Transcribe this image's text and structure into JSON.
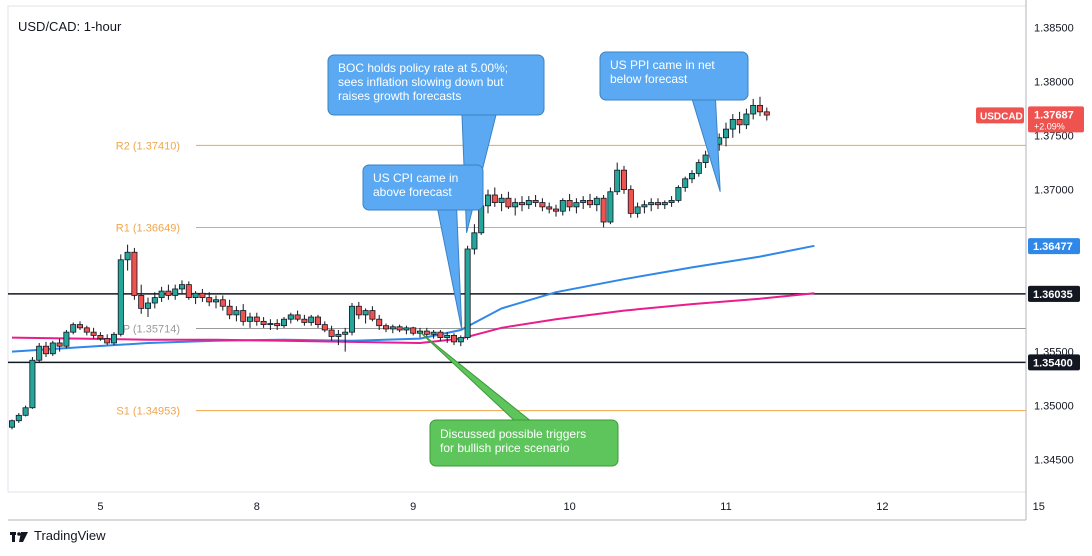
{
  "chart_data": {
    "type": "candlestick",
    "title": "USD/CAD: 1-hour",
    "symbol": "USDCAD",
    "last_price": "1.37687",
    "change": "+2.09%",
    "y_range": [
      1.342,
      1.387
    ],
    "y_ticks": [
      "1.38500",
      "1.38000",
      "1.37500",
      "1.37000",
      "1.36500",
      "1.36000",
      "1.35500",
      "1.35000",
      "1.34500"
    ],
    "x_ticks": [
      {
        "label": "5",
        "bar": 13
      },
      {
        "label": "8",
        "bar": 36
      },
      {
        "label": "9",
        "bar": 59
      },
      {
        "label": "10",
        "bar": 82
      },
      {
        "label": "11",
        "bar": 105
      },
      {
        "label": "12",
        "bar": 128
      },
      {
        "label": "15",
        "bar": 151
      }
    ],
    "pivot_levels": [
      {
        "name": "R2",
        "label": "R2 (1.37410)",
        "value": 1.3741,
        "color": "#f0a64c"
      },
      {
        "name": "R1",
        "label": "R1 (1.36649)",
        "value": 1.36649,
        "color": "#f0a64c"
      },
      {
        "name": "P",
        "label": "P (1.35714)",
        "value": 1.35714,
        "color": "#9a9a9a"
      },
      {
        "name": "S1",
        "label": "S1 (1.34953)",
        "value": 1.34953,
        "color": "#f0a64c"
      }
    ],
    "horizontal_lines": [
      {
        "value": 1.36035,
        "label": "1.36035",
        "color": "#131722",
        "label_bg": "#131722"
      },
      {
        "value": 1.354,
        "label": "1.35400",
        "color": "#131722",
        "label_bg": "#131722"
      }
    ],
    "price_labels": [
      {
        "value": 1.36477,
        "label": "1.36477",
        "bg": "#2f87e8"
      },
      {
        "value": 1.36035,
        "label": "1.36035",
        "bg": "#e91e63"
      }
    ],
    "candles": [
      [
        1.348,
        1.3487,
        1.3478,
        1.3486
      ],
      [
        1.3486,
        1.3493,
        1.3484,
        1.3491
      ],
      [
        1.3491,
        1.35,
        1.349,
        1.3498
      ],
      [
        1.3498,
        1.3545,
        1.3497,
        1.3542
      ],
      [
        1.3542,
        1.3558,
        1.354,
        1.3555
      ],
      [
        1.3555,
        1.3559,
        1.3545,
        1.3548
      ],
      [
        1.3548,
        1.356,
        1.3546,
        1.3558
      ],
      [
        1.3558,
        1.3562,
        1.355,
        1.3555
      ],
      [
        1.3555,
        1.357,
        1.3553,
        1.3568
      ],
      [
        1.3568,
        1.3577,
        1.3566,
        1.3575
      ],
      [
        1.3575,
        1.3578,
        1.357,
        1.3572
      ],
      [
        1.3572,
        1.3574,
        1.3565,
        1.3568
      ],
      [
        1.3568,
        1.3572,
        1.3562,
        1.3565
      ],
      [
        1.3565,
        1.3568,
        1.356,
        1.3562
      ],
      [
        1.3562,
        1.3566,
        1.3556,
        1.3558
      ],
      [
        1.3558,
        1.3568,
        1.3556,
        1.3566
      ],
      [
        1.3566,
        1.364,
        1.3564,
        1.3635
      ],
      [
        1.3635,
        1.3649,
        1.3625,
        1.3642
      ],
      [
        1.3642,
        1.3646,
        1.3598,
        1.3602
      ],
      [
        1.3602,
        1.3612,
        1.3585,
        1.359
      ],
      [
        1.359,
        1.36,
        1.3582,
        1.3595
      ],
      [
        1.3595,
        1.3605,
        1.359,
        1.36
      ],
      [
        1.36,
        1.361,
        1.3596,
        1.3606
      ],
      [
        1.3606,
        1.3612,
        1.3598,
        1.3602
      ],
      [
        1.3602,
        1.3612,
        1.3598,
        1.3608
      ],
      [
        1.3608,
        1.3616,
        1.3604,
        1.3612
      ],
      [
        1.3612,
        1.3615,
        1.3598,
        1.36
      ],
      [
        1.36,
        1.3606,
        1.3594,
        1.3604
      ],
      [
        1.3604,
        1.3608,
        1.3596,
        1.36
      ],
      [
        1.36,
        1.3605,
        1.3592,
        1.3596
      ],
      [
        1.3596,
        1.3602,
        1.359,
        1.3598
      ],
      [
        1.3598,
        1.3602,
        1.3588,
        1.3592
      ],
      [
        1.3592,
        1.3598,
        1.358,
        1.3584
      ],
      [
        1.3584,
        1.3592,
        1.3578,
        1.3588
      ],
      [
        1.3588,
        1.3594,
        1.3574,
        1.3578
      ],
      [
        1.3578,
        1.3586,
        1.3572,
        1.3582
      ],
      [
        1.3582,
        1.3586,
        1.3574,
        1.3578
      ],
      [
        1.3578,
        1.3582,
        1.3572,
        1.3575
      ],
      [
        1.3575,
        1.358,
        1.357,
        1.3576
      ],
      [
        1.3576,
        1.358,
        1.357,
        1.3574
      ],
      [
        1.3574,
        1.3582,
        1.3572,
        1.358
      ],
      [
        1.358,
        1.3586,
        1.3576,
        1.3584
      ],
      [
        1.3584,
        1.3588,
        1.3578,
        1.358
      ],
      [
        1.358,
        1.3584,
        1.3574,
        1.3577
      ],
      [
        1.3577,
        1.3584,
        1.3574,
        1.3582
      ],
      [
        1.3582,
        1.3584,
        1.3572,
        1.3575
      ],
      [
        1.3575,
        1.3578,
        1.3568,
        1.357
      ],
      [
        1.357,
        1.3574,
        1.356,
        1.3564
      ],
      [
        1.3564,
        1.357,
        1.3556,
        1.3566
      ],
      [
        1.3566,
        1.3572,
        1.355,
        1.3568
      ],
      [
        1.3568,
        1.3595,
        1.3565,
        1.3592
      ],
      [
        1.3592,
        1.3596,
        1.358,
        1.3584
      ],
      [
        1.3584,
        1.359,
        1.3576,
        1.3588
      ],
      [
        1.3588,
        1.3592,
        1.3578,
        1.358
      ],
      [
        1.358,
        1.3584,
        1.357,
        1.3574
      ],
      [
        1.3574,
        1.3576,
        1.3568,
        1.3571
      ],
      [
        1.3571,
        1.3575,
        1.3567,
        1.3573
      ],
      [
        1.3573,
        1.3575,
        1.3568,
        1.357
      ],
      [
        1.357,
        1.3574,
        1.3566,
        1.3572
      ],
      [
        1.3572,
        1.3573,
        1.3565,
        1.3567
      ],
      [
        1.3567,
        1.3572,
        1.3563,
        1.3569
      ],
      [
        1.3569,
        1.3572,
        1.3564,
        1.3566
      ],
      [
        1.3566,
        1.357,
        1.3562,
        1.3568
      ],
      [
        1.3568,
        1.357,
        1.356,
        1.3563
      ],
      [
        1.3563,
        1.3568,
        1.3558,
        1.3565
      ],
      [
        1.3565,
        1.3567,
        1.3556,
        1.3559
      ],
      [
        1.3559,
        1.3565,
        1.3555,
        1.3563
      ],
      [
        1.3563,
        1.3648,
        1.3561,
        1.3645
      ],
      [
        1.3645,
        1.3668,
        1.364,
        1.366
      ],
      [
        1.366,
        1.369,
        1.3658,
        1.3685
      ],
      [
        1.3685,
        1.37,
        1.3678,
        1.3695
      ],
      [
        1.3695,
        1.3702,
        1.3684,
        1.3688
      ],
      [
        1.3688,
        1.3696,
        1.368,
        1.3692
      ],
      [
        1.3692,
        1.3698,
        1.3682,
        1.3684
      ],
      [
        1.3684,
        1.3692,
        1.3676,
        1.3688
      ],
      [
        1.3688,
        1.3694,
        1.368,
        1.3686
      ],
      [
        1.3686,
        1.3694,
        1.3682,
        1.369
      ],
      [
        1.369,
        1.3695,
        1.3684,
        1.3688
      ],
      [
        1.3688,
        1.3692,
        1.368,
        1.3684
      ],
      [
        1.3684,
        1.3688,
        1.3678,
        1.3682
      ],
      [
        1.3682,
        1.3686,
        1.3675,
        1.368
      ],
      [
        1.368,
        1.3692,
        1.3676,
        1.369
      ],
      [
        1.369,
        1.3696,
        1.368,
        1.3684
      ],
      [
        1.3684,
        1.3692,
        1.3678,
        1.3688
      ],
      [
        1.3688,
        1.3694,
        1.3682,
        1.369
      ],
      [
        1.369,
        1.3696,
        1.3683,
        1.3686
      ],
      [
        1.3686,
        1.3694,
        1.368,
        1.3692
      ],
      [
        1.3692,
        1.3695,
        1.3665,
        1.367
      ],
      [
        1.367,
        1.3702,
        1.3668,
        1.3698
      ],
      [
        1.3698,
        1.3725,
        1.3695,
        1.3718
      ],
      [
        1.3718,
        1.3722,
        1.3696,
        1.37
      ],
      [
        1.37,
        1.3704,
        1.3674,
        1.3678
      ],
      [
        1.3678,
        1.3688,
        1.3674,
        1.3684
      ],
      [
        1.3684,
        1.369,
        1.3678,
        1.3686
      ],
      [
        1.3686,
        1.3692,
        1.368,
        1.3688
      ],
      [
        1.3688,
        1.3692,
        1.3682,
        1.3686
      ],
      [
        1.3686,
        1.369,
        1.3682,
        1.3688
      ],
      [
        1.3688,
        1.3694,
        1.3684,
        1.369
      ],
      [
        1.369,
        1.3704,
        1.3688,
        1.3702
      ],
      [
        1.3702,
        1.3712,
        1.3698,
        1.371
      ],
      [
        1.371,
        1.3718,
        1.3706,
        1.3715
      ],
      [
        1.3715,
        1.3728,
        1.3712,
        1.3725
      ],
      [
        1.3725,
        1.3736,
        1.372,
        1.3732
      ],
      [
        1.3732,
        1.3745,
        1.3728,
        1.3742
      ],
      [
        1.3742,
        1.3752,
        1.3736,
        1.3748
      ],
      [
        1.3748,
        1.3762,
        1.374,
        1.3756
      ],
      [
        1.3756,
        1.377,
        1.3748,
        1.3765
      ],
      [
        1.3765,
        1.3772,
        1.3752,
        1.376
      ],
      [
        1.376,
        1.3775,
        1.3756,
        1.377
      ],
      [
        1.377,
        1.3784,
        1.3765,
        1.3778
      ],
      [
        1.3778,
        1.3786,
        1.3768,
        1.3772
      ],
      [
        1.3772,
        1.3776,
        1.3764,
        1.3769
      ]
    ],
    "series": [
      {
        "name": "moving-average-blue",
        "color": "#2f87e8",
        "values": [
          [
            0,
            1.355
          ],
          [
            10,
            1.3554
          ],
          [
            20,
            1.3558
          ],
          [
            30,
            1.356
          ],
          [
            40,
            1.3561
          ],
          [
            50,
            1.356
          ],
          [
            60,
            1.3562
          ],
          [
            66,
            1.357
          ],
          [
            72,
            1.359
          ],
          [
            80,
            1.3605
          ],
          [
            90,
            1.3617
          ],
          [
            100,
            1.3628
          ],
          [
            110,
            1.3638
          ],
          [
            118,
            1.3648
          ]
        ]
      },
      {
        "name": "moving-average-magenta",
        "color": "#e91e8c",
        "values": [
          [
            0,
            1.3563
          ],
          [
            10,
            1.3562
          ],
          [
            20,
            1.3561
          ],
          [
            30,
            1.3561
          ],
          [
            40,
            1.356
          ],
          [
            50,
            1.3559
          ],
          [
            60,
            1.3558
          ],
          [
            66,
            1.3562
          ],
          [
            72,
            1.3572
          ],
          [
            80,
            1.358
          ],
          [
            90,
            1.3588
          ],
          [
            100,
            1.3594
          ],
          [
            110,
            1.3599
          ],
          [
            118,
            1.3604
          ]
        ]
      }
    ],
    "annotations": [
      {
        "lines": [
          "BOC holds policy rate at 5.00%;",
          "sees inflation slowing down but",
          "raises growth forecasts"
        ],
        "color": "#5aa9f2"
      },
      {
        "lines": [
          "US PPI came in net",
          "below forecast"
        ],
        "color": "#5aa9f2"
      },
      {
        "lines": [
          "US CPI came in",
          "above forecast"
        ],
        "color": "#5aa9f2"
      },
      {
        "lines": [
          "Discussed possible triggers",
          "for bullish price scenario"
        ],
        "color": "#5ec45c"
      }
    ],
    "colors": {
      "up": "#26a69a",
      "down": "#ef5350",
      "grid": "#e0e3eb",
      "axis_text": "#131722"
    }
  },
  "footer": {
    "brand": "TradingView"
  }
}
